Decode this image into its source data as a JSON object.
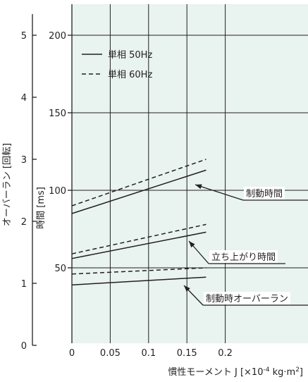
{
  "chart_data": {
    "type": "line",
    "title": "",
    "xlabel": "慣性モーメント J [×10",
    "xlabel_sup": "-4",
    "xlabel_unit": " kg·m",
    "xlabel_sup2": "2",
    "xlabel_end": "]",
    "ylabel_time": "時間 [ms]",
    "ylabel_overrun": "オーバーラン [回転]",
    "xlim": [
      0,
      0.25
    ],
    "ylim_time": [
      0,
      220
    ],
    "ylim_overrun": [
      0,
      5.5
    ],
    "x_ticks": [
      "0",
      "0.05",
      "0.1",
      "0.15",
      "0.2"
    ],
    "x_tick_values": [
      0,
      0.05,
      0.1,
      0.15,
      0.2
    ],
    "time_ticks": [
      "50",
      "100",
      "150",
      "200"
    ],
    "time_tick_values": [
      50,
      100,
      150,
      200
    ],
    "overrun_ticks": [
      "0",
      "1",
      "2",
      "3",
      "4",
      "5"
    ],
    "overrun_tick_values": [
      0,
      1,
      2,
      3,
      4,
      5
    ],
    "grid": true,
    "legend_position": "top-left",
    "legend": [
      {
        "label": "単相 50Hz",
        "style": "solid"
      },
      {
        "label": "単相 60Hz",
        "style": "dashed"
      }
    ],
    "series": [
      {
        "name": "単相 50Hz",
        "group": "制動時間",
        "axis": "time",
        "style": "solid",
        "x": [
          0,
          0.175
        ],
        "y": [
          85,
          113
        ]
      },
      {
        "name": "単相 60Hz",
        "group": "制動時間",
        "axis": "time",
        "style": "dashed",
        "x": [
          0,
          0.175
        ],
        "y": [
          90,
          120
        ]
      },
      {
        "name": "単相 50Hz",
        "group": "立ち上がり時間",
        "axis": "time",
        "style": "solid",
        "x": [
          0,
          0.175
        ],
        "y": [
          56,
          73
        ]
      },
      {
        "name": "単相 60Hz",
        "group": "立ち上がり時間",
        "axis": "time",
        "style": "dashed",
        "x": [
          0,
          0.175
        ],
        "y": [
          59,
          78
        ]
      },
      {
        "name": "単相 50Hz",
        "group": "制動時オーバーラン",
        "axis": "time",
        "style": "solid",
        "x": [
          0,
          0.175
        ],
        "y": [
          39,
          44
        ]
      },
      {
        "name": "単相 60Hz",
        "group": "制動時オーバーラン",
        "axis": "time",
        "style": "dashed",
        "x": [
          0,
          0.175
        ],
        "y": [
          46,
          50
        ]
      }
    ],
    "annotations": [
      {
        "text": "制動時間"
      },
      {
        "text": "立ち上がり時間"
      },
      {
        "text": "制動時オーバーラン"
      }
    ]
  },
  "colors": {
    "plot_bg": "#e9f3ef",
    "line": "#231f20",
    "grid": "#231f20"
  }
}
